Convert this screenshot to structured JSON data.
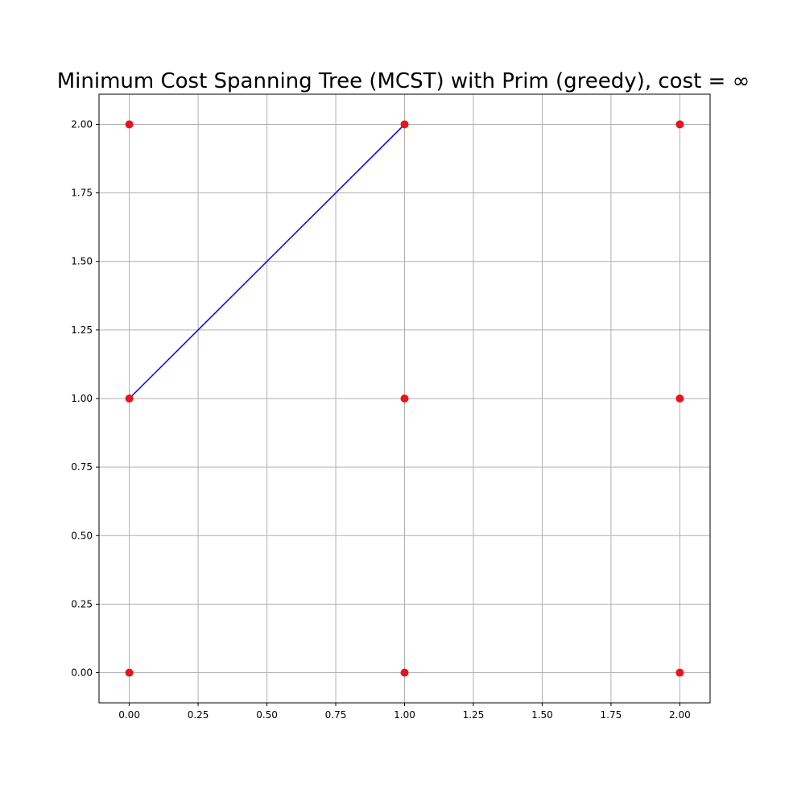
{
  "chart_data": {
    "type": "scatter",
    "title": "Minimum Cost Spanning Tree (MCST) with Prim (greedy), cost = ∞",
    "xlabel": "",
    "ylabel": "",
    "xlim": [
      -0.11,
      2.11
    ],
    "ylim": [
      -0.11,
      2.11
    ],
    "grid": true,
    "x_ticks": [
      0.0,
      0.25,
      0.5,
      0.75,
      1.0,
      1.25,
      1.5,
      1.75,
      2.0
    ],
    "y_ticks": [
      0.0,
      0.25,
      0.5,
      0.75,
      1.0,
      1.25,
      1.5,
      1.75,
      2.0
    ],
    "x_tick_labels": [
      "0.00",
      "0.25",
      "0.50",
      "0.75",
      "1.00",
      "1.25",
      "1.50",
      "1.75",
      "2.00"
    ],
    "y_tick_labels": [
      "0.00",
      "0.25",
      "0.50",
      "0.75",
      "1.00",
      "1.25",
      "1.50",
      "1.75",
      "2.00"
    ],
    "points": [
      {
        "x": 0,
        "y": 0
      },
      {
        "x": 1,
        "y": 0
      },
      {
        "x": 2,
        "y": 0
      },
      {
        "x": 0,
        "y": 1
      },
      {
        "x": 1,
        "y": 1
      },
      {
        "x": 2,
        "y": 1
      },
      {
        "x": 0,
        "y": 2
      },
      {
        "x": 1,
        "y": 2
      },
      {
        "x": 2,
        "y": 2
      }
    ],
    "edges": [
      {
        "from": [
          0,
          1
        ],
        "to": [
          1,
          2
        ]
      }
    ],
    "colors": {
      "point": "#e8141b",
      "edge": "#0000ff",
      "grid": "#b0b0b0",
      "axes": "#000000"
    }
  }
}
